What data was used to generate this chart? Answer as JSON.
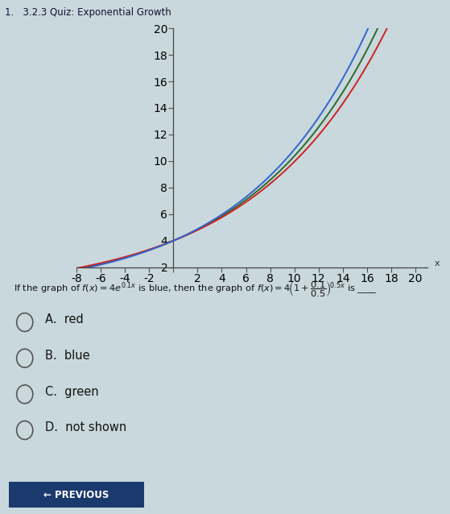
{
  "title": "1.   3.2.3 Quiz: Exponential Growth",
  "xlim": [
    -8,
    21
  ],
  "ylim": [
    2,
    20
  ],
  "xtick_vals": [
    -8,
    -6,
    -4,
    -2,
    0,
    2,
    4,
    6,
    8,
    10,
    12,
    14,
    16,
    18,
    20
  ],
  "xtick_labels": [
    "-8",
    "-6",
    "-4",
    "-2",
    "",
    "2",
    "4",
    "6",
    "8",
    "10",
    "12",
    "14",
    "16",
    "18",
    "20"
  ],
  "ytick_vals": [
    2,
    4,
    6,
    8,
    10,
    12,
    14,
    16,
    18,
    20
  ],
  "ytick_labels": [
    "2",
    "4",
    "6",
    "8",
    "10",
    "12",
    "14",
    "16",
    "18",
    "20"
  ],
  "blue_color": "#3366cc",
  "red_color": "#cc2222",
  "green_color": "#2d6a2d",
  "bg_color": "#c8d8dc",
  "line_width": 1.4,
  "choices": [
    "A.  red",
    "B.  blue",
    "C.  green",
    "D.  not shown"
  ]
}
